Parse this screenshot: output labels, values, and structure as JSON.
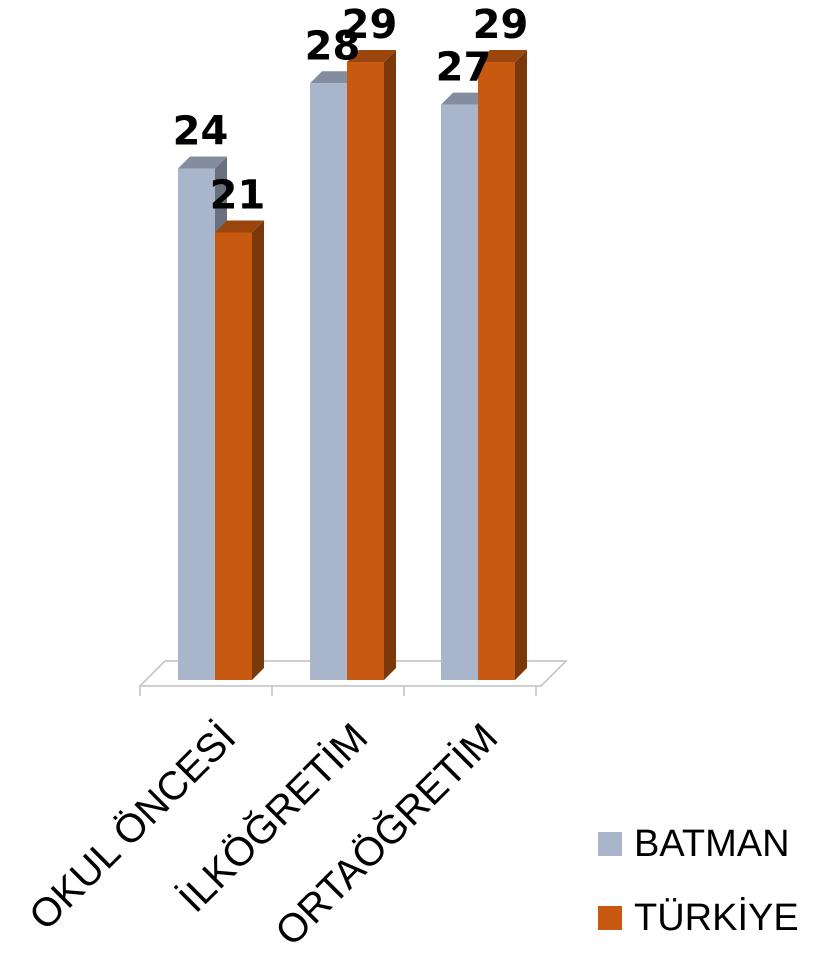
{
  "chart_data": {
    "type": "bar",
    "categories": [
      "OKUL ÖNCESİ",
      "İLKÖĞRETİM",
      "ORTAÖĞRETİM"
    ],
    "series": [
      {
        "name": "BATMAN",
        "values": [
          24,
          28,
          27
        ],
        "color": "#A9B5CB"
      },
      {
        "name": "TÜRKİYE",
        "values": [
          21,
          29,
          29
        ],
        "color": "#C75A10"
      }
    ],
    "ylim": [
      0,
      29
    ],
    "grid": false,
    "legend_position": "bottom-right",
    "style": "3d-clustered-column"
  }
}
